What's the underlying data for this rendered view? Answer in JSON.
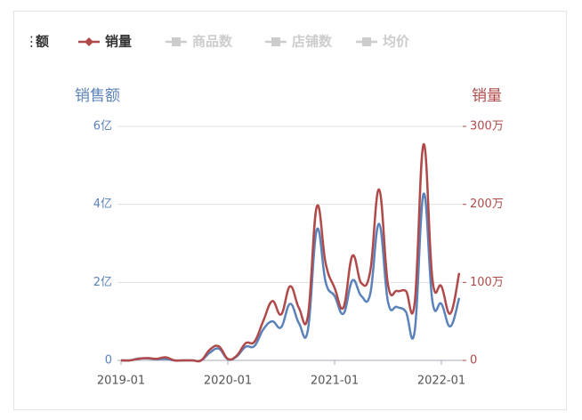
{
  "chart_data": {
    "type": "line",
    "left_axis_title": "销售额",
    "right_axis_title": "销量",
    "x": [
      "2019-01",
      "2019-02",
      "2019-03",
      "2019-04",
      "2019-05",
      "2019-06",
      "2019-07",
      "2019-08",
      "2019-09",
      "2019-10",
      "2019-11",
      "2019-12",
      "2020-01",
      "2020-02",
      "2020-03",
      "2020-04",
      "2020-05",
      "2020-06",
      "2020-07",
      "2020-08",
      "2020-09",
      "2020-10",
      "2020-11",
      "2020-12",
      "2021-01",
      "2021-02",
      "2021-03",
      "2021-04",
      "2021-05",
      "2021-06",
      "2021-07",
      "2021-08",
      "2021-09",
      "2021-10",
      "2021-11",
      "2021-12",
      "2022-01",
      "2022-02",
      "2022-03"
    ],
    "xticks": [
      "2019-01",
      "2020-01",
      "2021-01",
      "2022-01"
    ],
    "series": [
      {
        "name": "额",
        "color": "#5b82b9",
        "axis": "y",
        "values": [
          0,
          0,
          0.05,
          0.05,
          0.03,
          0.04,
          0,
          0,
          0,
          0,
          0.2,
          0.3,
          0.03,
          0.1,
          0.35,
          0.37,
          0.8,
          1.0,
          0.85,
          1.45,
          0.95,
          0.78,
          3.35,
          2.0,
          1.65,
          1.2,
          2.05,
          1.65,
          1.7,
          3.5,
          1.5,
          1.37,
          1.25,
          0.75,
          4.27,
          1.5,
          1.45,
          0.87,
          1.6
        ]
      },
      {
        "name": "销量",
        "color": "#b04a4a",
        "axis": "y2",
        "values": [
          0,
          0,
          2,
          3,
          2,
          4,
          0,
          0,
          0,
          0,
          14,
          18,
          2,
          6,
          22,
          24,
          51,
          76,
          59,
          95,
          67,
          57,
          197,
          124,
          93,
          68,
          134,
          99,
          114,
          219,
          97,
          89,
          89,
          74,
          277,
          103,
          95,
          60,
          112
        ]
      }
    ],
    "inactive_legend": [
      "商品数",
      "店铺数",
      "均价"
    ],
    "inactive_color": "#cccccc",
    "ylim": [
      0,
      6
    ],
    "yticks": [
      0,
      {
        "value": 2,
        "label": "2亿"
      },
      {
        "value": 4,
        "label": "4亿"
      },
      {
        "value": 6,
        "label": "6亿"
      }
    ],
    "y2lim": [
      0,
      300
    ],
    "y2ticks": [
      0,
      {
        "value": 100,
        "label": "100万"
      },
      {
        "value": 200,
        "label": "200万"
      },
      {
        "value": 300,
        "label": "300万"
      }
    ],
    "grid": true
  }
}
